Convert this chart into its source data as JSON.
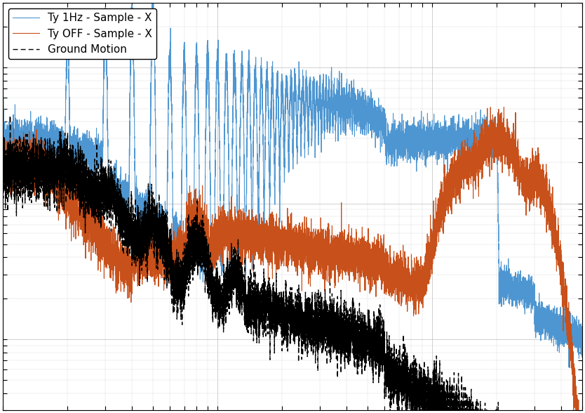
{
  "title": "",
  "xlabel": "",
  "ylabel": "",
  "xlim": [
    1,
    500
  ],
  "ylim": [
    3e-10,
    3e-07
  ],
  "line1_label": "Ty 1Hz - Sample - X",
  "line1_color": "#4e96d1",
  "line2_label": "Ty OFF - Sample - X",
  "line2_color": "#c8501a",
  "line3_label": "Ground Motion",
  "line3_color": "#000000",
  "background_color": "#ffffff",
  "grid_color": "#bbbbbb",
  "legend_fontsize": 11,
  "figsize": [
    8.34,
    5.88
  ],
  "dpi": 100
}
